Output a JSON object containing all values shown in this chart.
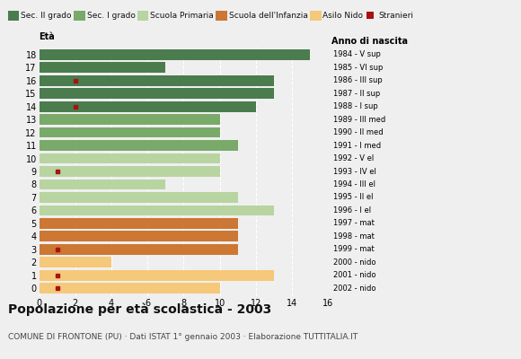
{
  "ages": [
    18,
    17,
    16,
    15,
    14,
    13,
    12,
    11,
    10,
    9,
    8,
    7,
    6,
    5,
    4,
    3,
    2,
    1,
    0
  ],
  "values": [
    15,
    7,
    13,
    13,
    12,
    10,
    10,
    11,
    10,
    10,
    7,
    11,
    13,
    11,
    11,
    11,
    4,
    13,
    10
  ],
  "stranieri": [
    0,
    0,
    2,
    0,
    2,
    0,
    0,
    0,
    0,
    1,
    0,
    0,
    0,
    0,
    0,
    1,
    0,
    1,
    1
  ],
  "anno_labels": [
    "1984 - V sup",
    "1985 - VI sup",
    "1986 - III sup",
    "1987 - II sup",
    "1988 - I sup",
    "1989 - III med",
    "1990 - II med",
    "1991 - I med",
    "1992 - V el",
    "1993 - IV el",
    "1994 - III el",
    "1995 - II el",
    "1996 - I el",
    "1997 - mat",
    "1998 - mat",
    "1999 - mat",
    "2000 - nido",
    "2001 - nido",
    "2002 - nido"
  ],
  "colors_by_age": {
    "18": "#4a7c4e",
    "17": "#4a7c4e",
    "16": "#4a7c4e",
    "15": "#4a7c4e",
    "14": "#4a7c4e",
    "13": "#7aaa6a",
    "12": "#7aaa6a",
    "11": "#7aaa6a",
    "10": "#b8d4a0",
    "9": "#b8d4a0",
    "8": "#b8d4a0",
    "7": "#b8d4a0",
    "6": "#b8d4a0",
    "5": "#cc7733",
    "4": "#cc7733",
    "3": "#cc7733",
    "2": "#f5c87a",
    "1": "#f5c87a",
    "0": "#f5c87a"
  },
  "legend_items": [
    {
      "label": "Sec. II grado",
      "color": "#4a7c4e",
      "type": "rect"
    },
    {
      "label": "Sec. I grado",
      "color": "#7aaa6a",
      "type": "rect"
    },
    {
      "label": "Scuola Primaria",
      "color": "#b8d4a0",
      "type": "rect"
    },
    {
      "label": "Scuola dell'Infanzia",
      "color": "#cc7733",
      "type": "rect"
    },
    {
      "label": "Asilo Nido",
      "color": "#f5c87a",
      "type": "rect"
    },
    {
      "label": "Stranieri",
      "color": "#aa1111",
      "type": "square"
    }
  ],
  "stranieri_color": "#aa1111",
  "bg_color": "#efefef",
  "grid_color": "#ffffff",
  "title": "Popolazione per età scolastica - 2003",
  "subtitle": "COMUNE DI FRONTONE (PU) · Dati ISTAT 1° gennaio 2003 · Elaborazione TUTTITALIA.IT",
  "eta_label": "Età",
  "anno_label": "Anno di nascita",
  "xlim": [
    0,
    16
  ],
  "xticks": [
    0,
    2,
    4,
    6,
    8,
    10,
    12,
    14,
    16
  ]
}
